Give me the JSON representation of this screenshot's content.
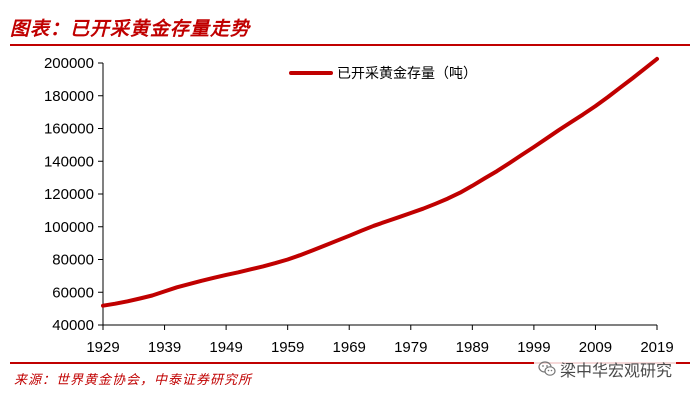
{
  "header": {
    "title": "图表：已开采黄金存量走势"
  },
  "footer": {
    "source": "来源：世界黄金协会，中泰证券研究所",
    "watermark": "梁中华宏观研究"
  },
  "colors": {
    "accent": "#c00000",
    "series": "#c00000"
  },
  "chart_data": {
    "type": "line",
    "title": "",
    "xlabel": "",
    "ylabel": "",
    "xlim": [
      1929,
      2019
    ],
    "ylim": [
      40000,
      200000
    ],
    "x_ticks": [
      1929,
      1939,
      1949,
      1959,
      1969,
      1979,
      1989,
      1999,
      2009,
      2019
    ],
    "y_ticks": [
      40000,
      60000,
      80000,
      100000,
      120000,
      140000,
      160000,
      180000,
      200000
    ],
    "grid": false,
    "legend_position": "top-center",
    "series": [
      {
        "name": "已开采黄金存量（吨）",
        "x": [
          1929,
          1931,
          1933,
          1935,
          1937,
          1939,
          1941,
          1943,
          1945,
          1947,
          1949,
          1951,
          1953,
          1955,
          1957,
          1959,
          1961,
          1963,
          1965,
          1967,
          1969,
          1971,
          1973,
          1975,
          1977,
          1979,
          1981,
          1983,
          1985,
          1987,
          1989,
          1991,
          1993,
          1995,
          1997,
          1999,
          2001,
          2003,
          2005,
          2007,
          2009,
          2011,
          2013,
          2015,
          2017,
          2019
        ],
        "y": [
          51800,
          53000,
          54500,
          56200,
          58000,
          60500,
          63000,
          65000,
          67000,
          68800,
          70600,
          72200,
          74000,
          75800,
          77800,
          80000,
          82600,
          85500,
          88500,
          91500,
          94500,
          97600,
          100600,
          103200,
          105800,
          108400,
          111000,
          114000,
          117200,
          120800,
          125000,
          129500,
          134000,
          138800,
          143800,
          148700,
          153800,
          158900,
          163800,
          168600,
          173700,
          179200,
          184900,
          190600,
          196500,
          202500
        ]
      }
    ]
  }
}
